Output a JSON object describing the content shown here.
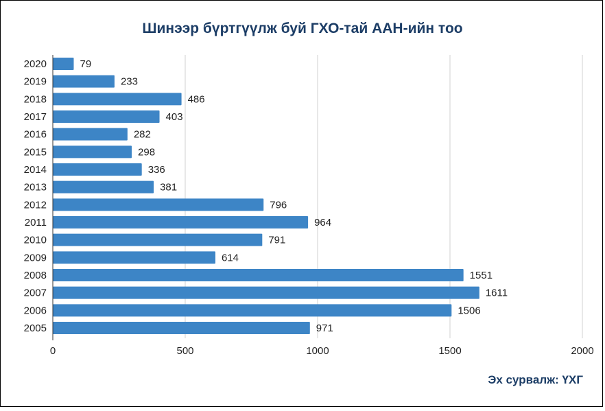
{
  "chart_data": {
    "type": "bar",
    "orientation": "horizontal",
    "title": "Шинээр бүртгүүлж буй ГХО-тай ААН-ийн тоо",
    "source": "Эх сурвалж: ҮХГ",
    "categories": [
      "2020",
      "2019",
      "2018",
      "2017",
      "2016",
      "2015",
      "2014",
      "2013",
      "2012",
      "2011",
      "2010",
      "2009",
      "2008",
      "2007",
      "2006",
      "2005"
    ],
    "values": [
      79,
      233,
      486,
      403,
      282,
      298,
      336,
      381,
      796,
      964,
      791,
      614,
      1551,
      1611,
      1506,
      971
    ],
    "xlim": [
      0,
      2000
    ],
    "xticks": [
      "0",
      "500",
      "1000",
      "1500",
      "2000"
    ],
    "grid": true,
    "xlabel": "",
    "ylabel": "",
    "bar_color": "#3d85c6"
  }
}
